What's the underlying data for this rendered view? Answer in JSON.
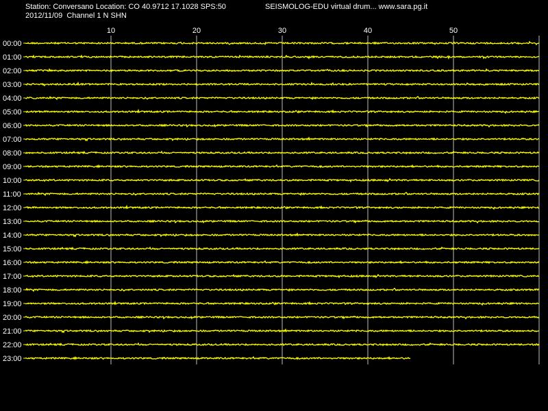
{
  "header": {
    "station_line": "Station: Conversano Location: CO 40.9712 17.1028 SPS:50",
    "app_line": "SEISMOLOG-EDU virtual drum... www.sara.pg.it",
    "date_channel_line": "2012/11/09  Channel 1 N SHN"
  },
  "colors": {
    "background": "#000000",
    "trace": "#ffff00",
    "grid": "#c0c0c0",
    "text": "#ffffff"
  },
  "chart_data": {
    "type": "line",
    "title": "",
    "xlabel": "",
    "ylabel": "",
    "x_tick_labels": [
      "10",
      "20",
      "30",
      "40",
      "50"
    ],
    "x_ticks": [
      10,
      20,
      30,
      40,
      50
    ],
    "xlim": [
      0,
      60
    ],
    "grid": true,
    "categories": [
      "00:00",
      "01:00",
      "02:00",
      "03:00",
      "04:00",
      "05:00",
      "06:00",
      "07:00",
      "08:00",
      "09:00",
      "10:00",
      "11:00",
      "12:00",
      "13:00",
      "14:00",
      "15:00",
      "16:00",
      "17:00",
      "18:00",
      "19:00",
      "20:00",
      "21:00",
      "22:00",
      "23:00"
    ],
    "values": [
      60,
      60,
      60,
      60,
      60,
      60,
      60,
      60,
      60,
      60,
      60,
      60,
      60,
      60,
      60,
      60,
      60,
      60,
      60,
      60,
      60,
      60,
      60,
      45
    ]
  }
}
